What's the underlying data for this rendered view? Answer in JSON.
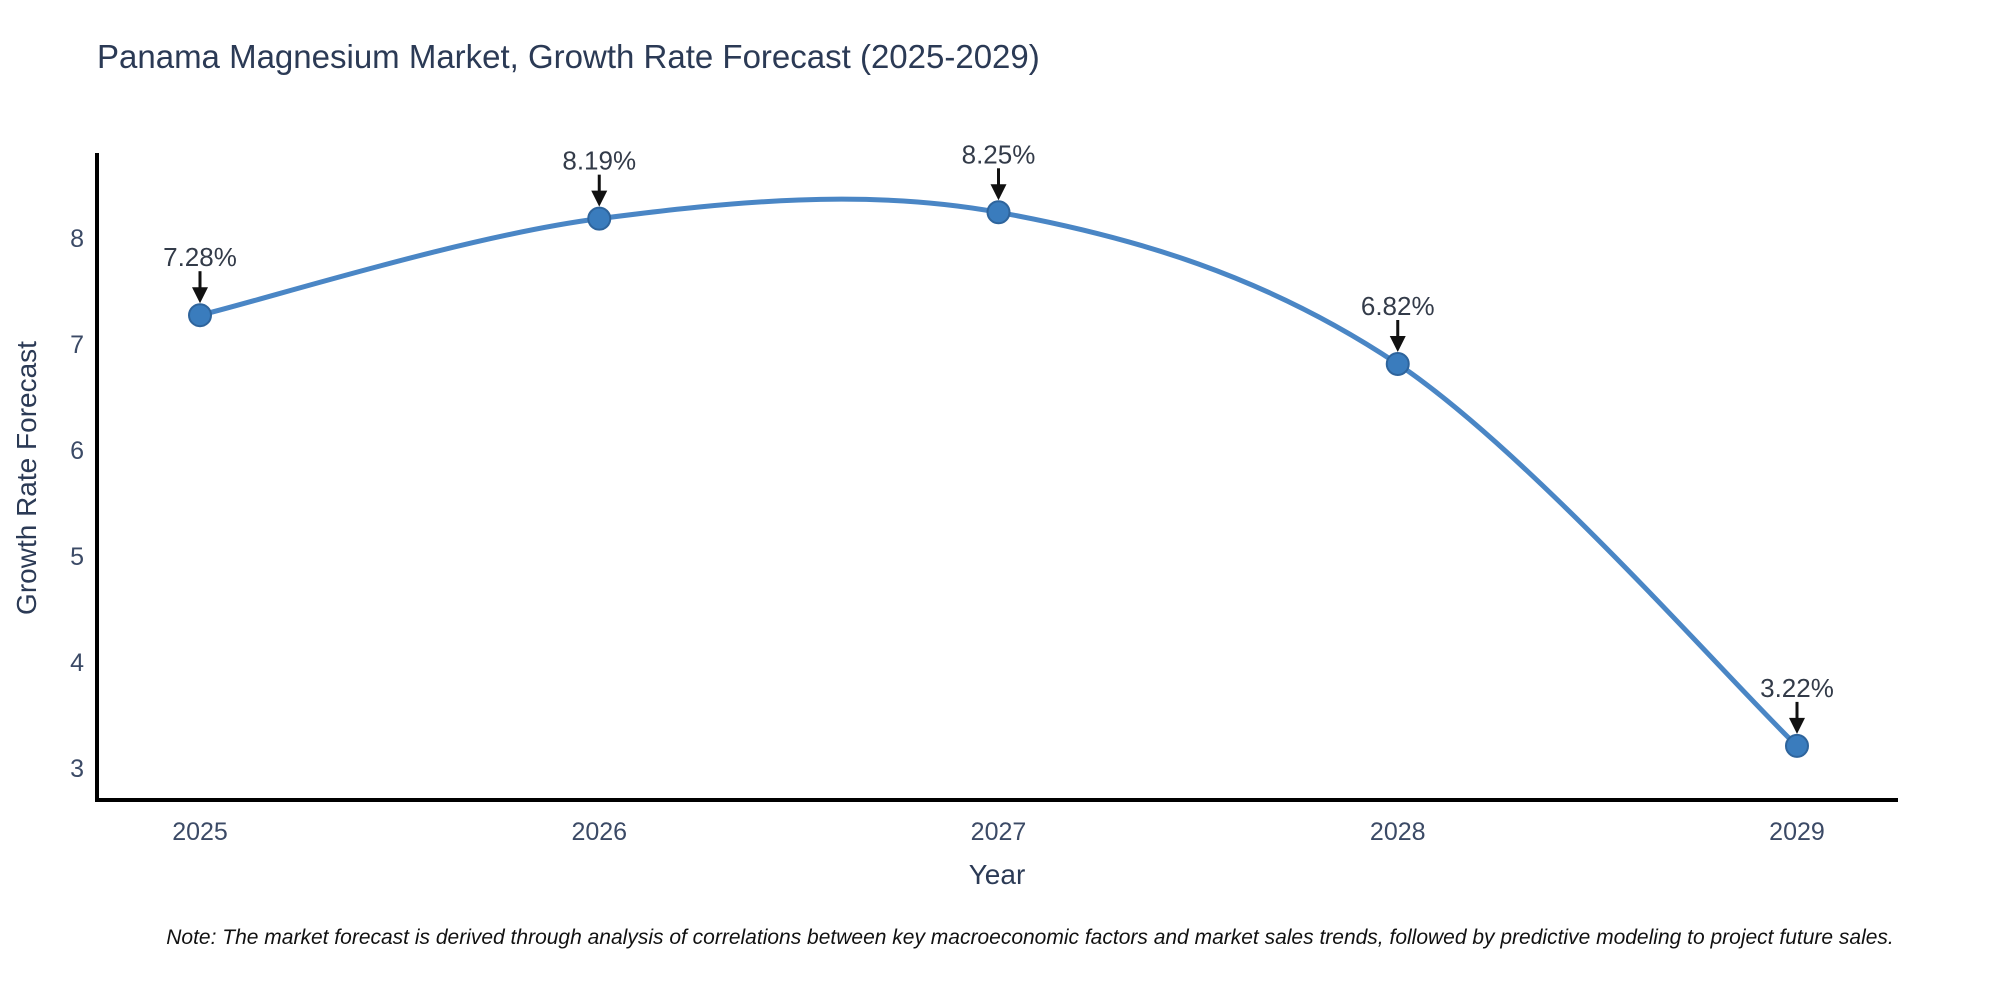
{
  "chart_data": {
    "type": "line",
    "line_shape": "spline",
    "title": "Panama Magnesium Market, Growth Rate Forecast (2025-2029)",
    "xlabel": "Year",
    "ylabel": "Growth Rate Forecast",
    "x": [
      2025,
      2026,
      2027,
      2028,
      2029
    ],
    "y": [
      7.28,
      8.19,
      8.25,
      6.82,
      3.22
    ],
    "point_labels": [
      "7.28%",
      "8.19%",
      "8.25%",
      "6.82%",
      "3.22%"
    ],
    "x_tick_labels": [
      "2025",
      "2026",
      "2027",
      "2028",
      "2029"
    ],
    "y_ticks": [
      3,
      4,
      5,
      6,
      7,
      8
    ],
    "y_tick_labels": [
      "3",
      "4",
      "5",
      "6",
      "7",
      "8"
    ],
    "xlim": [
      2024.742,
      2029.253
    ],
    "ylim": [
      2.71,
      8.79
    ],
    "grid": false,
    "legend_position": "none",
    "note": "Note: The market forecast is derived through analysis of correlations between key macroeconomic factors and market sales trends, followed by predictive modeling to project future sales.",
    "colors": {
      "line": "#4a86c5",
      "marker": "#3a7cbd",
      "marker_border": "#2e649c",
      "arrow": "#111111",
      "axis_line": "#000000",
      "title_text": "#2b3a55",
      "axis_text": "#3b4a66",
      "annotation_text": "#333b49",
      "note_text": "#111111"
    }
  }
}
